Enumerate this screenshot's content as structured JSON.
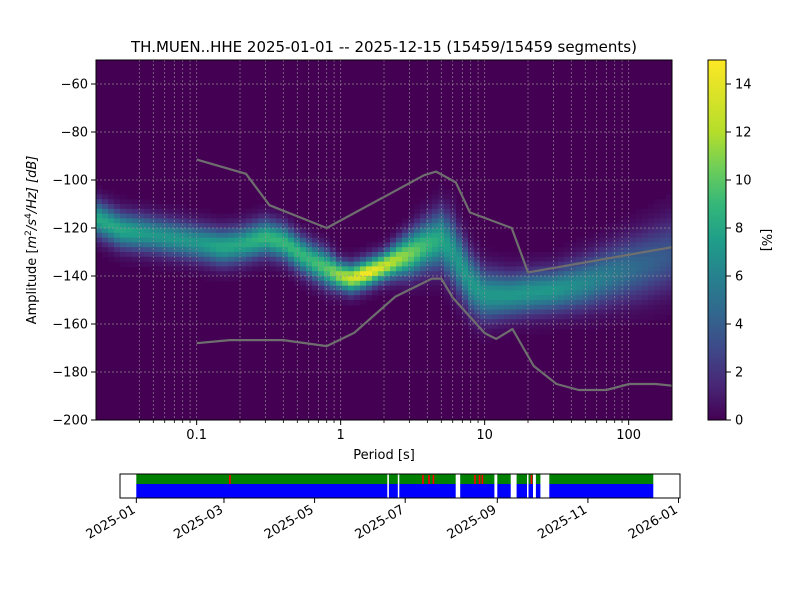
{
  "figure": {
    "title": "TH.MUEN..HHE   2025-01-01 -- 2025-12-15  (15459/15459 segments)"
  },
  "chart_data": [
    {
      "type": "heatmap",
      "name": "ppd",
      "title": "TH.MUEN..HHE   2025-01-01 -- 2025-12-15  (15459/15459 segments)",
      "xlabel": "Period [s]",
      "ylabel": "Amplitude [m²/s⁴/Hz] [dB]",
      "ylabel_parts": {
        "prefix": "Amplitude [",
        "m": "m",
        "exp2": "2",
        "mid": "/s",
        "exp4": "4",
        "suffix": "/Hz] [dB]"
      },
      "x_scale": "log",
      "xlim": [
        0.02,
        200
      ],
      "ylim": [
        -200,
        -50
      ],
      "x_ticks": [
        {
          "value": 0.1,
          "label": "0.1"
        },
        {
          "value": 1,
          "label": "1"
        },
        {
          "value": 10,
          "label": "10"
        },
        {
          "value": 100,
          "label": "100"
        }
      ],
      "y_ticks": [
        {
          "value": -60,
          "label": "−60"
        },
        {
          "value": -80,
          "label": "−80"
        },
        {
          "value": -100,
          "label": "−100"
        },
        {
          "value": -120,
          "label": "−120"
        },
        {
          "value": -140,
          "label": "−140"
        },
        {
          "value": -160,
          "label": "−160"
        },
        {
          "value": -180,
          "label": "−180"
        },
        {
          "value": -200,
          "label": "−200"
        }
      ],
      "grid": true,
      "colormap": "viridis",
      "background_color": "#440154",
      "model_line_color": "#6e6e6e",
      "density_mode_curve": {
        "period": [
          0.02,
          0.03,
          0.05,
          0.08,
          0.1,
          0.15,
          0.2,
          0.3,
          0.4,
          0.5,
          0.6,
          0.8,
          1.0,
          1.2,
          1.5,
          2.0,
          2.5,
          3.0,
          4.0,
          5.0,
          6.0,
          8.0,
          10,
          15,
          20,
          30,
          50,
          80,
          120,
          200
        ],
        "amplitude_db": [
          -116,
          -121,
          -123,
          -125,
          -126,
          -128,
          -127,
          -124,
          -126,
          -130,
          -133,
          -137,
          -140,
          -141,
          -139,
          -136,
          -133,
          -131,
          -127,
          -125,
          -130,
          -143,
          -148,
          -148,
          -147,
          -146,
          -143,
          -139,
          -136,
          -131
        ],
        "peak_percent": [
          9,
          9,
          8,
          8,
          8,
          9,
          9,
          10,
          10,
          10,
          10,
          11,
          13,
          14,
          15,
          14,
          13,
          12,
          10,
          9,
          8,
          8,
          8,
          8,
          8,
          8,
          7,
          6,
          5,
          4
        ],
        "spread_db": [
          5,
          5,
          5,
          5,
          5,
          5,
          5,
          5,
          5,
          5,
          5,
          5,
          4,
          4,
          4,
          4,
          5,
          6,
          7,
          8,
          9,
          8,
          7,
          6,
          6,
          6,
          7,
          8,
          9,
          10
        ]
      },
      "models": [
        {
          "name": "high noise model",
          "period": [
            0.1,
            0.22,
            0.32,
            0.8,
            3.8,
            4.6,
            6.3,
            7.9,
            15.4,
            20,
            200
          ],
          "amplitude_db": [
            -91.5,
            -97.4,
            -110.5,
            -120,
            -98,
            -96.5,
            -101,
            -113.5,
            -120,
            -138.5,
            -128
          ]
        },
        {
          "name": "low noise model",
          "period": [
            0.1,
            0.17,
            0.4,
            0.8,
            1.24,
            2.4,
            4.3,
            5.0,
            6.0,
            10,
            12,
            15.6,
            21.9,
            31.6,
            45,
            70,
            101,
            154,
            200
          ],
          "amplitude_db": [
            -168,
            -166.7,
            -166.7,
            -169.2,
            -163.7,
            -148.6,
            -141.1,
            -141.1,
            -149,
            -163.8,
            -166.2,
            -162.1,
            -177.5,
            -185,
            -187.5,
            -187.5,
            -185,
            -185,
            -185.7
          ]
        }
      ],
      "period_gridlines": [
        0.04,
        0.05,
        0.06,
        0.07,
        0.08,
        0.09,
        0.1,
        0.2,
        0.3,
        0.4,
        0.5,
        0.6,
        0.7,
        0.8,
        0.9,
        1,
        2,
        3,
        4,
        5,
        6,
        7,
        8,
        9,
        10,
        20,
        30,
        40,
        50,
        60,
        70,
        80,
        90,
        100
      ]
    },
    {
      "type": "bar",
      "name": "colorbar",
      "label": "[%]",
      "range": [
        0,
        15
      ],
      "ticks": [
        {
          "value": 0,
          "label": "0"
        },
        {
          "value": 2,
          "label": "2"
        },
        {
          "value": 4,
          "label": "4"
        },
        {
          "value": 6,
          "label": "6"
        },
        {
          "value": 8,
          "label": "8"
        },
        {
          "value": 10,
          "label": "10"
        },
        {
          "value": 12,
          "label": "12"
        },
        {
          "value": 14,
          "label": "14"
        }
      ]
    },
    {
      "type": "timeline",
      "name": "data-coverage",
      "xlim": [
        "2024-12-21",
        "2026-01-02"
      ],
      "x_ticks": [
        {
          "value": "2025-01-01",
          "label": "2025-01"
        },
        {
          "value": "2025-03-01",
          "label": "2025-03"
        },
        {
          "value": "2025-05-01",
          "label": "2025-05"
        },
        {
          "value": "2025-07-01",
          "label": "2025-07"
        },
        {
          "value": "2025-09-01",
          "label": "2025-09"
        },
        {
          "value": "2025-11-01",
          "label": "2025-11"
        },
        {
          "value": "2026-01-01",
          "label": "2026-01"
        }
      ],
      "data_color": "#0000ff",
      "processed_color": "#008000",
      "gap_color": "#ff0000",
      "coverage": [
        [
          "2025-01-01",
          "2025-06-19"
        ],
        [
          "2025-06-20",
          "2025-06-26"
        ],
        [
          "2025-06-27",
          "2025-08-04"
        ],
        [
          "2025-08-07",
          "2025-08-30"
        ],
        [
          "2025-09-01",
          "2025-09-10"
        ],
        [
          "2025-09-14",
          "2025-09-21"
        ],
        [
          "2025-09-22",
          "2025-09-25"
        ],
        [
          "2025-09-27",
          "2025-09-30"
        ],
        [
          "2025-10-06",
          "2025-12-15"
        ]
      ],
      "gaps": [
        "2025-03-05",
        "2025-07-13",
        "2025-07-17",
        "2025-07-20",
        "2025-08-17",
        "2025-08-20",
        "2025-08-22",
        "2025-09-24"
      ]
    }
  ]
}
